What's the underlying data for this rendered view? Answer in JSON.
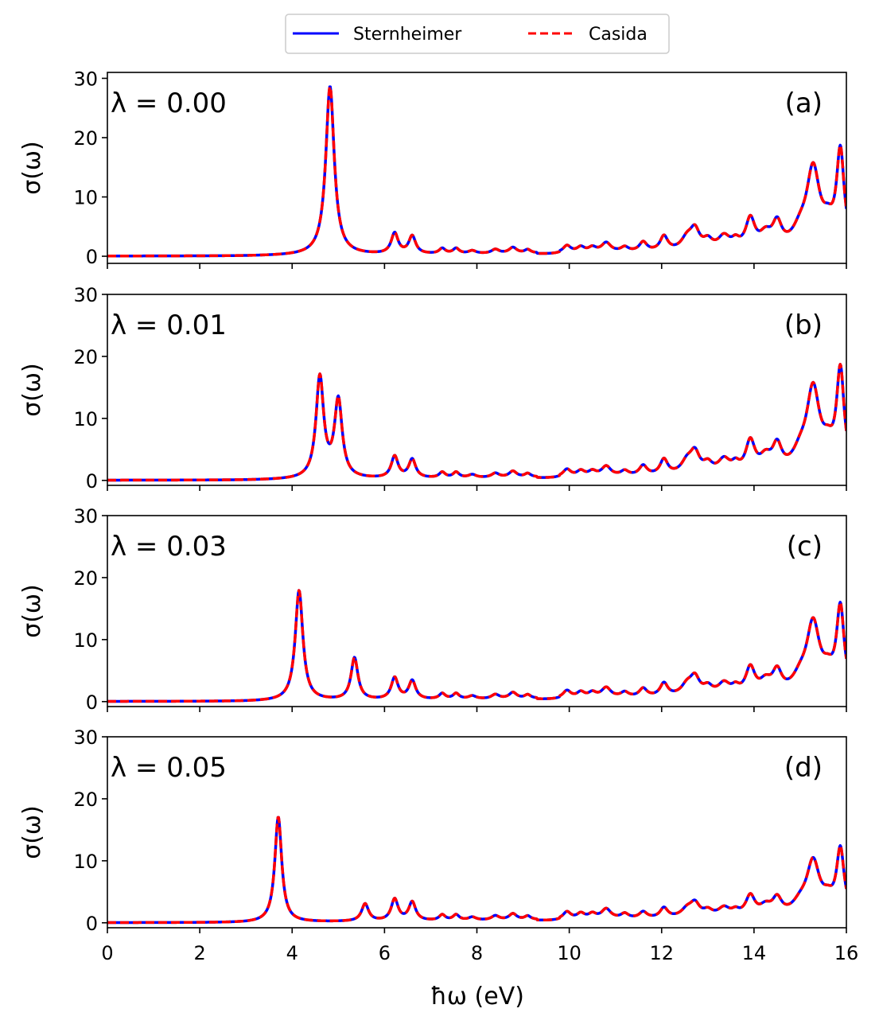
{
  "chart_data": {
    "type": "line",
    "xlabel": "ħω (eV)",
    "ylabel": "σ(ω)",
    "xlim": [
      0,
      16
    ],
    "x_ticks": [
      0,
      2,
      4,
      6,
      8,
      10,
      12,
      14,
      16
    ],
    "x_tick_labels": [
      "0",
      "2",
      "4",
      "6",
      "8",
      "10",
      "12",
      "14",
      "16"
    ],
    "y_ticks": [
      0,
      10,
      20,
      30
    ],
    "y_tick_labels": [
      "0",
      "10",
      "20",
      "30"
    ],
    "legend": {
      "placement": "top-center",
      "entries": [
        {
          "label": "Sternheimer",
          "color": "#0000ff",
          "style": "solid"
        },
        {
          "label": "Casida",
          "color": "#ff0000",
          "style": "dashed"
        }
      ]
    },
    "common_peaks": [
      {
        "x": 6.22,
        "h": 3.5,
        "w": 0.09
      },
      {
        "x": 6.6,
        "h": 3.0,
        "w": 0.09
      },
      {
        "x": 7.25,
        "h": 0.9,
        "w": 0.08
      },
      {
        "x": 7.55,
        "h": 0.9,
        "w": 0.08
      },
      {
        "x": 7.9,
        "h": 0.5,
        "w": 0.1
      },
      {
        "x": 8.4,
        "h": 0.7,
        "w": 0.1
      },
      {
        "x": 8.78,
        "h": 1.0,
        "w": 0.1
      },
      {
        "x": 9.1,
        "h": 0.6,
        "w": 0.08
      },
      {
        "x": 9.95,
        "h": 1.2,
        "w": 0.1
      },
      {
        "x": 10.25,
        "h": 0.9,
        "w": 0.1
      },
      {
        "x": 10.5,
        "h": 0.8,
        "w": 0.1
      },
      {
        "x": 10.8,
        "h": 1.6,
        "w": 0.12
      },
      {
        "x": 11.2,
        "h": 0.8,
        "w": 0.1
      },
      {
        "x": 11.6,
        "h": 1.6,
        "w": 0.1
      },
      {
        "x": 12.05,
        "h": 2.5,
        "w": 0.1
      },
      {
        "x": 12.55,
        "h": 2.0,
        "w": 0.15
      },
      {
        "x": 12.72,
        "h": 3.2,
        "w": 0.12
      },
      {
        "x": 13.0,
        "h": 1.5,
        "w": 0.12
      },
      {
        "x": 13.35,
        "h": 2.2,
        "w": 0.15
      },
      {
        "x": 13.6,
        "h": 1.2,
        "w": 0.1
      },
      {
        "x": 13.92,
        "h": 5.0,
        "w": 0.12
      },
      {
        "x": 14.25,
        "h": 2.2,
        "w": 0.15
      },
      {
        "x": 14.5,
        "h": 4.0,
        "w": 0.12
      },
      {
        "x": 15.0,
        "h": 2.5,
        "w": 0.2
      },
      {
        "x": 15.28,
        "h": 13.0,
        "w": 0.17
      },
      {
        "x": 15.6,
        "h": 3.0,
        "w": 0.15
      },
      {
        "x": 15.87,
        "h": 16.0,
        "w": 0.1
      }
    ],
    "panels": [
      {
        "label": "(a)",
        "lambda_text": "λ = 0.00",
        "lambda": 0.0,
        "ylim": [
          -1.2,
          31
        ],
        "main_peaks": [
          {
            "x": 4.82,
            "h": 28.5,
            "w": 0.11
          }
        ],
        "high_energy_scale": 1.0
      },
      {
        "label": "(b)",
        "lambda_text": "λ = 0.01",
        "lambda": 0.01,
        "ylim": [
          -0.8,
          30
        ],
        "main_peaks": [
          {
            "x": 4.6,
            "h": 16.3,
            "w": 0.1
          },
          {
            "x": 5.0,
            "h": 12.5,
            "w": 0.1
          }
        ],
        "high_energy_scale": 1.0
      },
      {
        "label": "(c)",
        "lambda_text": "λ = 0.03",
        "lambda": 0.03,
        "ylim": [
          -0.8,
          30
        ],
        "main_peaks": [
          {
            "x": 4.15,
            "h": 17.8,
            "w": 0.1
          },
          {
            "x": 5.35,
            "h": 6.8,
            "w": 0.09
          }
        ],
        "high_energy_scale": 0.85
      },
      {
        "label": "(d)",
        "lambda_text": "λ = 0.05",
        "lambda": 0.05,
        "ylim": [
          -0.8,
          30
        ],
        "main_peaks": [
          {
            "x": 3.7,
            "h": 17.0,
            "w": 0.09
          },
          {
            "x": 5.58,
            "h": 2.8,
            "w": 0.09
          }
        ],
        "high_energy_scale": 0.65
      }
    ]
  }
}
